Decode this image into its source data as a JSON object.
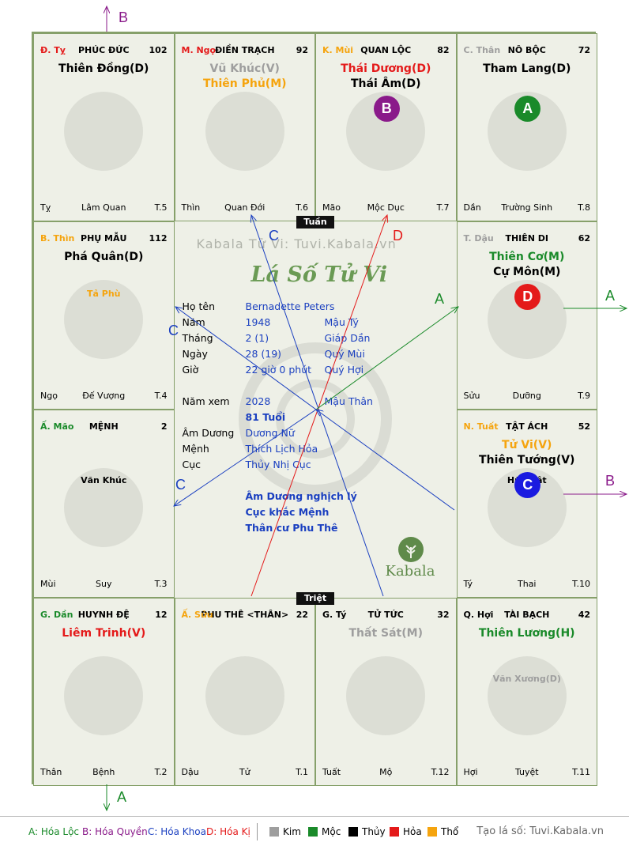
{
  "colors": {
    "kim": "#9e9e9e",
    "moc": "#1a8a2a",
    "thuy": "#000000",
    "hoa": "#e41a1a",
    "tho": "#f5a40e",
    "blue": "#1a3fc0",
    "purple": "#8a1a8a"
  },
  "palaces": [
    {
      "id": "ty",
      "can": "Đ. Tỵ",
      "can_color": "#e41a1a",
      "name": "PHÚC ĐỨC",
      "num": "102",
      "stars": [
        {
          "t": "Thiên Đồng(D)",
          "c": "#000000"
        }
      ],
      "minor": [],
      "left": "Tỵ",
      "mid": "Lâm Quan",
      "right": "T.5",
      "icon": "snake-icon"
    },
    {
      "id": "ngo",
      "can": "M. Ngọ",
      "can_color": "#e41a1a",
      "name": "ĐIỀN TRẠCH",
      "num": "92",
      "stars": [
        {
          "t": "Vũ Khúc(V)",
          "c": "#9e9e9e"
        },
        {
          "t": "Thiên Phủ(M)",
          "c": "#f5a40e"
        }
      ],
      "minor": [],
      "left": "Thìn",
      "mid": "Quan Đới",
      "right": "T.6",
      "icon": "horse-icon"
    },
    {
      "id": "mui",
      "can": "K. Mùi",
      "can_color": "#f5a40e",
      "name": "QUAN LỘC",
      "num": "82",
      "stars": [
        {
          "t": "Thái Dương(D)",
          "c": "#e41a1a"
        },
        {
          "t": "Thái Âm(D)",
          "c": "#000000"
        }
      ],
      "minor": [],
      "left": "Mão",
      "mid": "Mộc Dục",
      "right": "T.7",
      "icon": "goat-icon",
      "badge": {
        "t": "B",
        "c": "#8a1a8a"
      }
    },
    {
      "id": "than",
      "can": "C. Thân",
      "can_color": "#9e9e9e",
      "name": "NÔ BỘC",
      "num": "72",
      "stars": [
        {
          "t": "Tham Lang(D)",
          "c": "#000000"
        }
      ],
      "minor": [],
      "left": "Dần",
      "mid": "Trường Sinh",
      "right": "T.8",
      "icon": "monkey-icon",
      "badge": {
        "t": "A",
        "c": "#1a8a2a"
      }
    },
    {
      "id": "dau",
      "can": "T. Dậu",
      "can_color": "#9e9e9e",
      "name": "THIÊN DI",
      "num": "62",
      "stars": [
        {
          "t": "Thiên Cơ(M)",
          "c": "#1a8a2a"
        },
        {
          "t": "Cự Môn(M)",
          "c": "#000000"
        }
      ],
      "minor": [],
      "left": "Sửu",
      "mid": "Dưỡng",
      "right": "T.9",
      "icon": "rooster-icon",
      "badge": {
        "t": "D",
        "c": "#e41a1a"
      }
    },
    {
      "id": "tuat",
      "can": "N. Tuất",
      "can_color": "#f5a40e",
      "name": "TẬT ÁCH",
      "num": "52",
      "stars": [
        {
          "t": "Tử Vi(V)",
          "c": "#f5a40e"
        },
        {
          "t": "Thiên Tướng(V)",
          "c": "#000000"
        }
      ],
      "minor": [
        {
          "t": "Hữu Bật",
          "c": "#000000"
        }
      ],
      "left": "Tý",
      "mid": "Thai",
      "right": "T.10",
      "icon": "dog-icon",
      "badge": {
        "t": "C",
        "c": "#1a1ae0"
      }
    },
    {
      "id": "hoi",
      "can": "Q. Hợi",
      "can_color": "#000000",
      "name": "TÀI BẠCH",
      "num": "42",
      "stars": [
        {
          "t": "Thiên Lương(H)",
          "c": "#1a8a2a"
        }
      ],
      "minor": [
        {
          "t": "Văn Xương(D)",
          "c": "#9e9e9e"
        }
      ],
      "left": "Hợi",
      "mid": "Tuyệt",
      "right": "T.11",
      "icon": "pig-icon"
    },
    {
      "id": "ty2",
      "can": "G. Tý",
      "can_color": "#000000",
      "name": "TỬ TỨC",
      "num": "32",
      "stars": [
        {
          "t": "Thất Sát(M)",
          "c": "#9e9e9e"
        }
      ],
      "minor": [],
      "left": "Tuất",
      "mid": "Mộ",
      "right": "T.12",
      "icon": "rat-icon"
    },
    {
      "id": "suu",
      "can": "Ấ. Sửu",
      "can_color": "#f5a40e",
      "name": "PHU THÊ <THÂN>",
      "num": "22",
      "stars": [],
      "minor": [],
      "left": "Dậu",
      "mid": "Tử",
      "right": "T.1",
      "icon": "ox-icon"
    },
    {
      "id": "dan",
      "can": "G. Dần",
      "can_color": "#1a8a2a",
      "name": "HUYNH ĐỆ",
      "num": "12",
      "stars": [
        {
          "t": "Liêm Trinh(V)",
          "c": "#e41a1a"
        }
      ],
      "minor": [],
      "left": "Thân",
      "mid": "Bệnh",
      "right": "T.2",
      "icon": "tiger-icon"
    },
    {
      "id": "mao",
      "can": "Ấ. Mão",
      "can_color": "#1a8a2a",
      "name": "MỆNH",
      "num": "2",
      "stars": [],
      "minor": [
        {
          "t": "Văn Khúc",
          "c": "#000000"
        }
      ],
      "left": "Mùi",
      "mid": "Suy",
      "right": "T.3",
      "icon": "cat-icon"
    },
    {
      "id": "thin",
      "can": "B. Thìn",
      "can_color": "#f5a40e",
      "name": "PHỤ MẪU",
      "num": "112",
      "stars": [
        {
          "t": "Phá Quân(D)",
          "c": "#000000"
        }
      ],
      "minor": [
        {
          "t": "Tả Phù",
          "c": "#f5a40e"
        }
      ],
      "left": "Ngọ",
      "mid": "Đế Vượng",
      "right": "T.4",
      "icon": "dragon-icon"
    }
  ],
  "center": {
    "watermark": "Kabala Tử Vi: Tuvi.Kabala.vn",
    "title": "Lá Số Tử Vi",
    "rows": [
      {
        "l": "Họ tên",
        "a": "Bernadette Peters",
        "b": ""
      },
      {
        "l": "Năm",
        "a": "1948",
        "b": "Mậu Tý"
      },
      {
        "l": "Tháng",
        "a": "2  (1)",
        "b": "Giáp Dần"
      },
      {
        "l": "Ngày",
        "a": "28  (19)",
        "b": "Quý Mùi"
      },
      {
        "l": "Giờ",
        "a": "22 giờ 0 phút",
        "b": "Quý Hợi"
      },
      {
        "l": "Năm xem",
        "a": "2028",
        "b": "Mậu Thân"
      },
      {
        "l": "",
        "a": "81 Tuổi",
        "b": ""
      },
      {
        "l": "Âm Dương",
        "a": "Dương Nữ",
        "b": ""
      },
      {
        "l": "Mệnh",
        "a": "Thích Lịch Hỏa",
        "b": ""
      },
      {
        "l": "Cục",
        "a": "Thủy Nhị Cục",
        "b": ""
      }
    ],
    "notes": [
      "Âm Dương nghịch lý",
      "Cục khắc Mệnh",
      "Thân cư Phu Thê"
    ],
    "logo": "Kabala",
    "tuan": "Tuần",
    "triet": "Triệt"
  },
  "arrow_labels": {
    "b_top": "B",
    "a_right": "A",
    "b_right": "B",
    "a_bottom": "A",
    "c_top": "C",
    "d_top": "D",
    "a_mid": "A",
    "c_left_top": "C",
    "c_left_bottom": "C"
  },
  "legend": {
    "a": "A: Hóa Lộc",
    "b": "B: Hóa Quyền",
    "c": "C: Hóa Khoa",
    "d": "D: Hóa Kị",
    "kim": "Kim",
    "moc": "Mộc",
    "thuy": "Thủy",
    "hoa": "Hỏa",
    "tho": "Thổ",
    "site": "Tạo lá số: Tuvi.Kabala.vn"
  }
}
